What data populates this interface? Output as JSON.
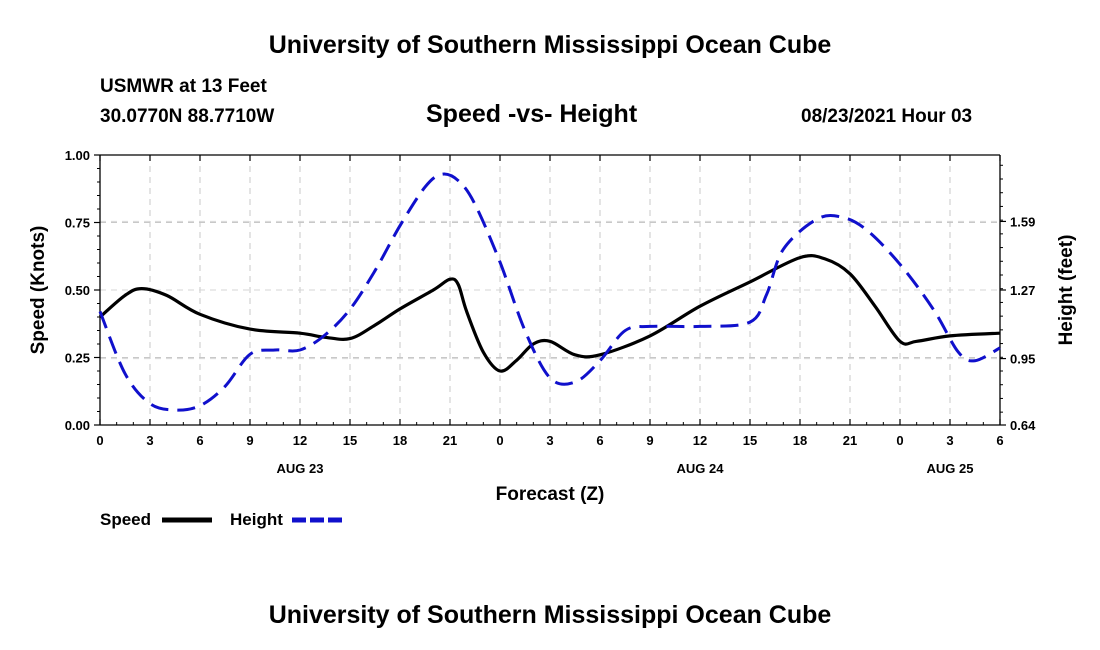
{
  "page": {
    "top_title": "University of Southern Mississippi Ocean Cube",
    "bottom_title": "University of Southern Mississippi Ocean Cube",
    "station": "USMWR at 13 Feet",
    "coords": "30.0770N  88.7710W",
    "chart_title": "Speed -vs- Height",
    "date_label": "08/23/2021 Hour 03"
  },
  "chart_data": {
    "type": "line",
    "title": "Speed -vs- Height",
    "xlabel": "Forecast (Z)",
    "ylabel": "Speed (Knots)",
    "y2label": "Height (feet)",
    "x_unit": "hours from 00Z AUG 23",
    "xlim": [
      0,
      54
    ],
    "ylim": [
      0,
      1.0
    ],
    "y2lim": [
      0.64,
      1.9
    ],
    "x_ticks": [
      0,
      3,
      6,
      9,
      12,
      15,
      18,
      21,
      24,
      27,
      30,
      33,
      36,
      39,
      42,
      45,
      48,
      51,
      54
    ],
    "x_tick_labels": [
      "0",
      "3",
      "6",
      "9",
      "12",
      "15",
      "18",
      "21",
      "0",
      "3",
      "6",
      "9",
      "12",
      "15",
      "18",
      "21",
      "0",
      "3",
      "6"
    ],
    "y_ticks": [
      0.0,
      0.25,
      0.5,
      0.75,
      1.0
    ],
    "y_tick_labels": [
      "0.00",
      "0.25",
      "0.50",
      "0.75",
      "1.00"
    ],
    "y2_ticks": [
      0.64,
      0.95,
      1.27,
      1.59
    ],
    "y2_tick_labels": [
      "0.64",
      "0.95",
      "1.27",
      "1.59"
    ],
    "day_labels": [
      {
        "x": 12,
        "label": "AUG 23"
      },
      {
        "x": 36,
        "label": "AUG 24"
      },
      {
        "x": 51,
        "label": "AUG 25"
      }
    ],
    "grid": true,
    "legend_position": "bottom-left",
    "series": [
      {
        "name": "Speed",
        "axis": "left",
        "color": "#000000",
        "style": "solid",
        "x": [
          0,
          1.5,
          2.5,
          4,
          6,
          9,
          12,
          13.5,
          15,
          16.5,
          18,
          20,
          21,
          21.5,
          22,
          23,
          24,
          25,
          26,
          27,
          28.5,
          30,
          33,
          36,
          39,
          42,
          43.5,
          45,
          46.5,
          48,
          49,
          51,
          54
        ],
        "y": [
          0.4,
          0.48,
          0.505,
          0.48,
          0.41,
          0.355,
          0.34,
          0.325,
          0.32,
          0.37,
          0.43,
          0.5,
          0.54,
          0.52,
          0.42,
          0.27,
          0.2,
          0.24,
          0.3,
          0.31,
          0.26,
          0.26,
          0.33,
          0.44,
          0.53,
          0.62,
          0.615,
          0.56,
          0.44,
          0.31,
          0.31,
          0.33,
          0.34
        ]
      },
      {
        "name": "Height",
        "axis": "right",
        "color": "#1010cc",
        "style": "dashed",
        "x": [
          0,
          1.5,
          3,
          4.5,
          6,
          7.5,
          9,
          10.5,
          12,
          13.5,
          15,
          16.5,
          18,
          19.5,
          20.5,
          21.5,
          22.5,
          24,
          25.5,
          27,
          28.5,
          30,
          31.5,
          33,
          36,
          39,
          40,
          41,
          43,
          44.5,
          46,
          48,
          50,
          51.5,
          52.5,
          54
        ],
        "y": [
          1.17,
          0.88,
          0.74,
          0.71,
          0.73,
          0.82,
          0.97,
          0.99,
          0.99,
          1.06,
          1.18,
          1.36,
          1.57,
          1.75,
          1.81,
          1.78,
          1.67,
          1.4,
          1.08,
          0.86,
          0.84,
          0.94,
          1.08,
          1.1,
          1.1,
          1.12,
          1.25,
          1.46,
          1.6,
          1.61,
          1.55,
          1.39,
          1.18,
          0.98,
          0.94,
          1.0
        ]
      }
    ]
  },
  "legend": {
    "speed_label": "Speed",
    "height_label": "Height"
  }
}
